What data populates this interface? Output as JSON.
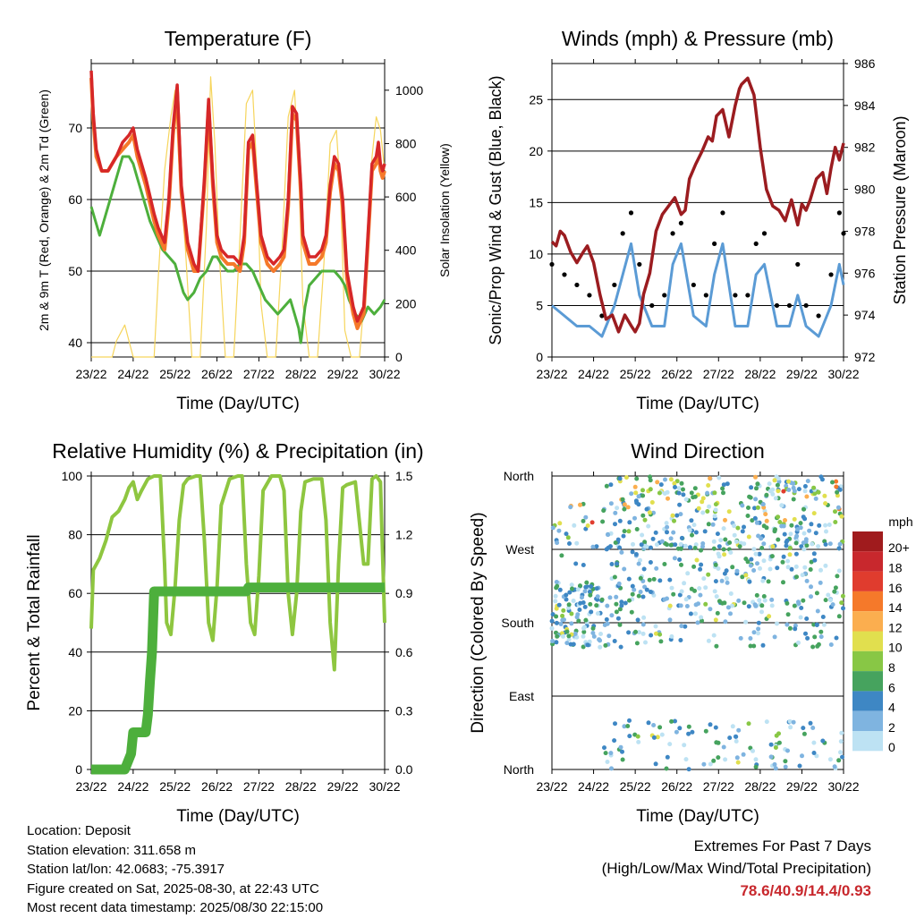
{
  "figure": {
    "time_ticks": [
      "23/22",
      "24/22",
      "25/22",
      "26/22",
      "27/22",
      "28/22",
      "29/22",
      "30/22"
    ],
    "time_label": "Time (Day/UTC)"
  },
  "chart_data": [
    {
      "type": "line",
      "title": "Temperature (F)",
      "xlabel": "Time (Day/UTC)",
      "ylabel": "2m & 9m T (Red, Orange) & 2m Td (Green)",
      "y2label": "Solar Insolation (Yellow)",
      "ylim": [
        38,
        79
      ],
      "y2lim": [
        0,
        1100
      ],
      "yticks": [
        40,
        50,
        60,
        70
      ],
      "y2ticks": [
        0,
        200,
        400,
        600,
        800,
        1000
      ],
      "xlim": [
        0,
        7
      ],
      "grid": "horizontal",
      "series": [
        {
          "color": "#d62728",
          "axis": "left",
          "x": [
            0,
            0.05,
            0.12,
            0.25,
            0.4,
            0.6,
            0.75,
            0.9,
            1.0,
            1.1,
            1.3,
            1.5,
            1.6,
            1.75,
            1.85,
            1.95,
            2.05,
            2.15,
            2.3,
            2.45,
            2.55,
            2.7,
            2.8,
            2.9,
            3.0,
            3.1,
            3.25,
            3.4,
            3.55,
            3.65,
            3.75,
            3.85,
            3.95,
            4.05,
            4.2,
            4.35,
            4.5,
            4.6,
            4.7,
            4.8,
            4.9,
            5.0,
            5.05,
            5.2,
            5.35,
            5.5,
            5.6,
            5.7,
            5.8,
            5.9,
            6.0,
            6.1,
            6.25,
            6.35,
            6.5,
            6.6,
            6.7,
            6.8,
            6.85,
            6.9,
            6.95,
            7.0
          ],
          "values": [
            78,
            72,
            67,
            64,
            64,
            66,
            68,
            69,
            70,
            67,
            63,
            58,
            56,
            54,
            60,
            70,
            76,
            62,
            54,
            51,
            50,
            63,
            74,
            63,
            55,
            53,
            52,
            52,
            51,
            55,
            68,
            69,
            62,
            55,
            52,
            51,
            52,
            53,
            60,
            73,
            72,
            62,
            55,
            52,
            52,
            53,
            55,
            62,
            66,
            65,
            60,
            50,
            45,
            43,
            45,
            55,
            65,
            66,
            68,
            65,
            64,
            65
          ]
        },
        {
          "color": "#f5792a",
          "axis": "left",
          "x": [
            0,
            0.05,
            0.12,
            0.25,
            0.4,
            0.6,
            0.75,
            0.9,
            1.0,
            1.1,
            1.3,
            1.5,
            1.6,
            1.75,
            1.85,
            1.95,
            2.05,
            2.15,
            2.3,
            2.45,
            2.55,
            2.7,
            2.8,
            2.9,
            3.0,
            3.1,
            3.25,
            3.4,
            3.55,
            3.65,
            3.75,
            3.85,
            3.95,
            4.05,
            4.2,
            4.35,
            4.5,
            4.6,
            4.7,
            4.8,
            4.9,
            5.0,
            5.05,
            5.2,
            5.35,
            5.5,
            5.6,
            5.7,
            5.8,
            5.9,
            6.0,
            6.1,
            6.25,
            6.35,
            6.5,
            6.6,
            6.7,
            6.8,
            6.85,
            6.9,
            6.95,
            7.0
          ],
          "values": [
            77,
            71,
            66,
            64,
            64,
            66,
            67,
            68,
            69,
            66,
            62,
            57,
            55,
            53,
            59,
            69,
            75,
            61,
            53,
            50,
            50,
            62,
            73,
            62,
            54,
            52,
            51,
            51,
            50,
            54,
            67,
            68,
            61,
            54,
            51,
            50,
            51,
            52,
            59,
            72,
            71,
            61,
            54,
            51,
            51,
            52,
            54,
            61,
            65,
            64,
            59,
            49,
            44,
            42,
            44,
            54,
            64,
            65,
            67,
            64,
            63,
            64
          ]
        },
        {
          "color": "#4daf3c",
          "axis": "left",
          "x": [
            0,
            0.1,
            0.2,
            0.3,
            0.45,
            0.6,
            0.75,
            0.9,
            1.0,
            1.1,
            1.25,
            1.4,
            1.55,
            1.7,
            1.85,
            2.0,
            2.1,
            2.2,
            2.3,
            2.45,
            2.6,
            2.75,
            2.9,
            3.0,
            3.1,
            3.25,
            3.4,
            3.55,
            3.7,
            3.85,
            4.0,
            4.15,
            4.3,
            4.45,
            4.6,
            4.75,
            4.85,
            4.95,
            5.0,
            5.1,
            5.2,
            5.35,
            5.5,
            5.65,
            5.8,
            5.95,
            6.05,
            6.15,
            6.3,
            6.45,
            6.6,
            6.75,
            6.9,
            7.0
          ],
          "values": [
            59,
            57,
            55,
            57,
            60,
            63,
            66,
            66,
            65,
            63,
            60,
            57,
            55,
            53,
            52,
            51,
            49,
            47,
            46,
            47,
            49,
            50,
            52,
            52,
            51,
            50,
            50,
            51,
            51,
            50,
            48,
            46,
            45,
            44,
            45,
            46,
            44,
            42,
            40,
            45,
            48,
            49,
            50,
            50,
            50,
            49,
            48,
            46,
            44,
            43,
            45,
            44,
            45,
            46
          ]
        },
        {
          "color": "#f6d55c",
          "axis": "right",
          "note": "solar insolation, daily cycle peaking near 1000-1050",
          "x": [
            0,
            0.5,
            0.6,
            0.8,
            1.0,
            1.5,
            1.6,
            1.75,
            1.9,
            2.0,
            2.1,
            2.25,
            2.4,
            2.6,
            2.75,
            2.85,
            2.95,
            3.05,
            3.2,
            3.4,
            3.55,
            3.7,
            3.85,
            3.95,
            4.05,
            4.2,
            4.4,
            4.55,
            4.7,
            4.85,
            4.95,
            5.05,
            5.2,
            5.4,
            5.55,
            5.7,
            5.85,
            5.95,
            6.05,
            6.2,
            6.4,
            6.55,
            6.7,
            6.8,
            6.9,
            7.0
          ],
          "values": [
            0,
            0,
            60,
            120,
            0,
            0,
            300,
            700,
            900,
            1000,
            700,
            400,
            0,
            0,
            500,
            1050,
            800,
            400,
            0,
            0,
            450,
            950,
            1000,
            700,
            200,
            0,
            0,
            400,
            900,
            1000,
            700,
            200,
            0,
            0,
            350,
            800,
            850,
            600,
            100,
            0,
            0,
            300,
            750,
            900,
            850,
            700
          ]
        }
      ]
    },
    {
      "type": "line",
      "title": "Winds (mph) & Pressure (mb)",
      "xlabel": "Time (Day/UTC)",
      "ylabel": "Sonic/Prop Wind & Gust (Blue, Black)",
      "y2label": "Station Pressure (Maroon)",
      "ylim": [
        0,
        28.5
      ],
      "y2lim": [
        972,
        986
      ],
      "yticks": [
        0,
        5,
        10,
        15,
        20,
        25
      ],
      "y2ticks": [
        972,
        974,
        976,
        978,
        980,
        982,
        984,
        986
      ],
      "xlim": [
        0,
        7
      ],
      "grid": "horizontal",
      "series": [
        {
          "color": "#9b1c20",
          "axis": "right",
          "x": [
            0,
            0.1,
            0.2,
            0.3,
            0.45,
            0.6,
            0.75,
            0.85,
            1.0,
            1.15,
            1.3,
            1.45,
            1.6,
            1.75,
            1.9,
            2.0,
            2.1,
            2.2,
            2.35,
            2.5,
            2.65,
            2.8,
            2.95,
            3.1,
            3.2,
            3.3,
            3.45,
            3.6,
            3.75,
            3.85,
            3.95,
            4.1,
            4.25,
            4.4,
            4.5,
            4.55,
            4.7,
            4.85,
            5.0,
            5.15,
            5.3,
            5.45,
            5.6,
            5.75,
            5.9,
            6.0,
            6.1,
            6.2,
            6.35,
            6.5,
            6.6,
            6.7,
            6.8,
            6.9,
            7.0
          ],
          "values": [
            977.5,
            977.3,
            978.0,
            977.8,
            977.0,
            976.5,
            977.0,
            977.3,
            976.5,
            975.0,
            973.8,
            974.0,
            973.2,
            974.0,
            973.5,
            973.2,
            973.6,
            975.0,
            976.0,
            978.0,
            978.8,
            979.2,
            979.6,
            978.8,
            979.0,
            980.5,
            981.2,
            981.8,
            982.5,
            982.3,
            983.5,
            983.8,
            982.5,
            984.0,
            984.8,
            985.0,
            985.3,
            984.5,
            982.0,
            980.0,
            979.2,
            979.0,
            978.5,
            979.5,
            978.3,
            979.3,
            979.0,
            979.5,
            980.5,
            980.8,
            979.8,
            981.0,
            982.0,
            981.4,
            982.2
          ]
        },
        {
          "color": "#5b9bd5",
          "axis": "left",
          "x": [
            0,
            0.3,
            0.6,
            0.9,
            1.2,
            1.5,
            1.7,
            1.9,
            2.1,
            2.4,
            2.7,
            2.9,
            3.1,
            3.4,
            3.7,
            3.9,
            4.1,
            4.4,
            4.7,
            4.9,
            5.1,
            5.4,
            5.7,
            5.9,
            6.1,
            6.4,
            6.7,
            6.9,
            7.0
          ],
          "values": [
            5,
            4,
            3,
            3,
            2,
            5,
            8,
            11,
            6,
            3,
            3,
            9,
            11,
            4,
            3,
            8,
            11,
            3,
            3,
            8,
            9,
            3,
            3,
            6,
            3,
            2,
            5,
            9,
            7
          ]
        },
        {
          "type": "scatter",
          "color": "#000000",
          "axis": "left",
          "x": [
            0,
            0.3,
            0.6,
            0.9,
            1.2,
            1.5,
            1.7,
            1.9,
            2.1,
            2.4,
            2.7,
            2.9,
            3.1,
            3.4,
            3.7,
            3.9,
            4.1,
            4.4,
            4.7,
            4.9,
            5.1,
            5.4,
            5.7,
            5.9,
            6.1,
            6.4,
            6.7,
            6.9,
            7.0
          ],
          "values": [
            9,
            8,
            7,
            6,
            4,
            7,
            12,
            14,
            9,
            5,
            6,
            12,
            13,
            7,
            6,
            11,
            14,
            6,
            6,
            11,
            12,
            5,
            5,
            9,
            5,
            4,
            8,
            14,
            12
          ]
        }
      ]
    },
    {
      "type": "line",
      "title": "Relative Humidity (%) & Precipitation (in)",
      "xlabel": "Time (Day/UTC)",
      "ylabel": "Percent & Total Rainfall",
      "ylim": [
        0,
        100
      ],
      "y2lim": [
        0,
        1.5
      ],
      "yticks": [
        0,
        20,
        40,
        60,
        80,
        100
      ],
      "y2ticks": [
        "0.0",
        "0.3",
        "0.6",
        "0.9",
        "1.2",
        "1.5"
      ],
      "xlim": [
        0,
        7
      ],
      "grid": "horizontal",
      "series": [
        {
          "color": "#8ec640",
          "axis": "left",
          "x": [
            0,
            0.05,
            0.2,
            0.35,
            0.5,
            0.65,
            0.8,
            0.9,
            1.0,
            1.1,
            1.2,
            1.35,
            1.5,
            1.65,
            1.75,
            1.8,
            1.9,
            2.0,
            2.1,
            2.2,
            2.3,
            2.5,
            2.6,
            2.7,
            2.8,
            2.9,
            3.0,
            3.1,
            3.3,
            3.5,
            3.6,
            3.7,
            3.8,
            3.9,
            4.0,
            4.1,
            4.3,
            4.5,
            4.6,
            4.7,
            4.8,
            4.9,
            5.0,
            5.1,
            5.3,
            5.5,
            5.6,
            5.7,
            5.8,
            5.9,
            6.0,
            6.1,
            6.3,
            6.5,
            6.6,
            6.7,
            6.8,
            6.9,
            7.0
          ],
          "values": [
            48,
            68,
            72,
            78,
            86,
            88,
            92,
            96,
            98,
            92,
            95,
            99,
            100,
            100,
            70,
            50,
            46,
            62,
            85,
            97,
            99,
            100,
            100,
            78,
            50,
            44,
            62,
            90,
            99,
            100,
            100,
            70,
            50,
            46,
            66,
            95,
            100,
            100,
            95,
            60,
            46,
            60,
            88,
            98,
            99,
            99,
            85,
            50,
            34,
            70,
            96,
            97,
            98,
            70,
            70,
            99,
            100,
            98,
            50
          ]
        },
        {
          "color": "#4daf3c",
          "axis": "right",
          "x": [
            0,
            0.5,
            0.8,
            0.95,
            1.0,
            1.3,
            1.35,
            1.4,
            1.45,
            1.5,
            1.55,
            3.7,
            3.75,
            7.0
          ],
          "values": [
            0,
            0,
            0,
            0.08,
            0.19,
            0.19,
            0.28,
            0.45,
            0.6,
            0.91,
            0.91,
            0.91,
            0.93,
            0.93
          ]
        }
      ]
    },
    {
      "type": "scatter",
      "title": "Wind Direction",
      "xlabel": "Time (Day/UTC)",
      "ylabel": "Direction (Colored By Speed)",
      "yticks": [
        "North",
        "West",
        "South",
        "East",
        "North"
      ],
      "xlim": [
        0,
        7
      ],
      "ylim": [
        0,
        360
      ],
      "grid": "horizontal",
      "colorbar": {
        "label": "mph",
        "levels": [
          "20+",
          "18",
          "16",
          "14",
          "12",
          "10",
          "8",
          "6",
          "4",
          "2",
          "0"
        ],
        "colors": [
          "#a01b1d",
          "#c8282d",
          "#e03c2e",
          "#f5792a",
          "#fbae4f",
          "#e1df4e",
          "#88c745",
          "#46a35e",
          "#3e87c4",
          "#7fb4e0",
          "#bde2f3"
        ]
      },
      "note": "point cloud of direction vs time colored by speed; southerly early, mostly northerly/westerly later"
    }
  ],
  "info": {
    "location": "Location: Deposit",
    "elevation": "Station elevation: 311.658 m",
    "latlon": "Station lat/lon: 42.0683; -75.3917",
    "created": "Figure created on Sat, 2025-08-30, at 22:43 UTC",
    "recent": "Most recent data timestamp: 2025/08/30 22:15:00"
  },
  "extremes": {
    "title": "Extremes For Past 7 Days",
    "subtitle": "(High/Low/Max Wind/Total Precipitation)",
    "values": "78.6/40.9/14.4/0.93"
  }
}
